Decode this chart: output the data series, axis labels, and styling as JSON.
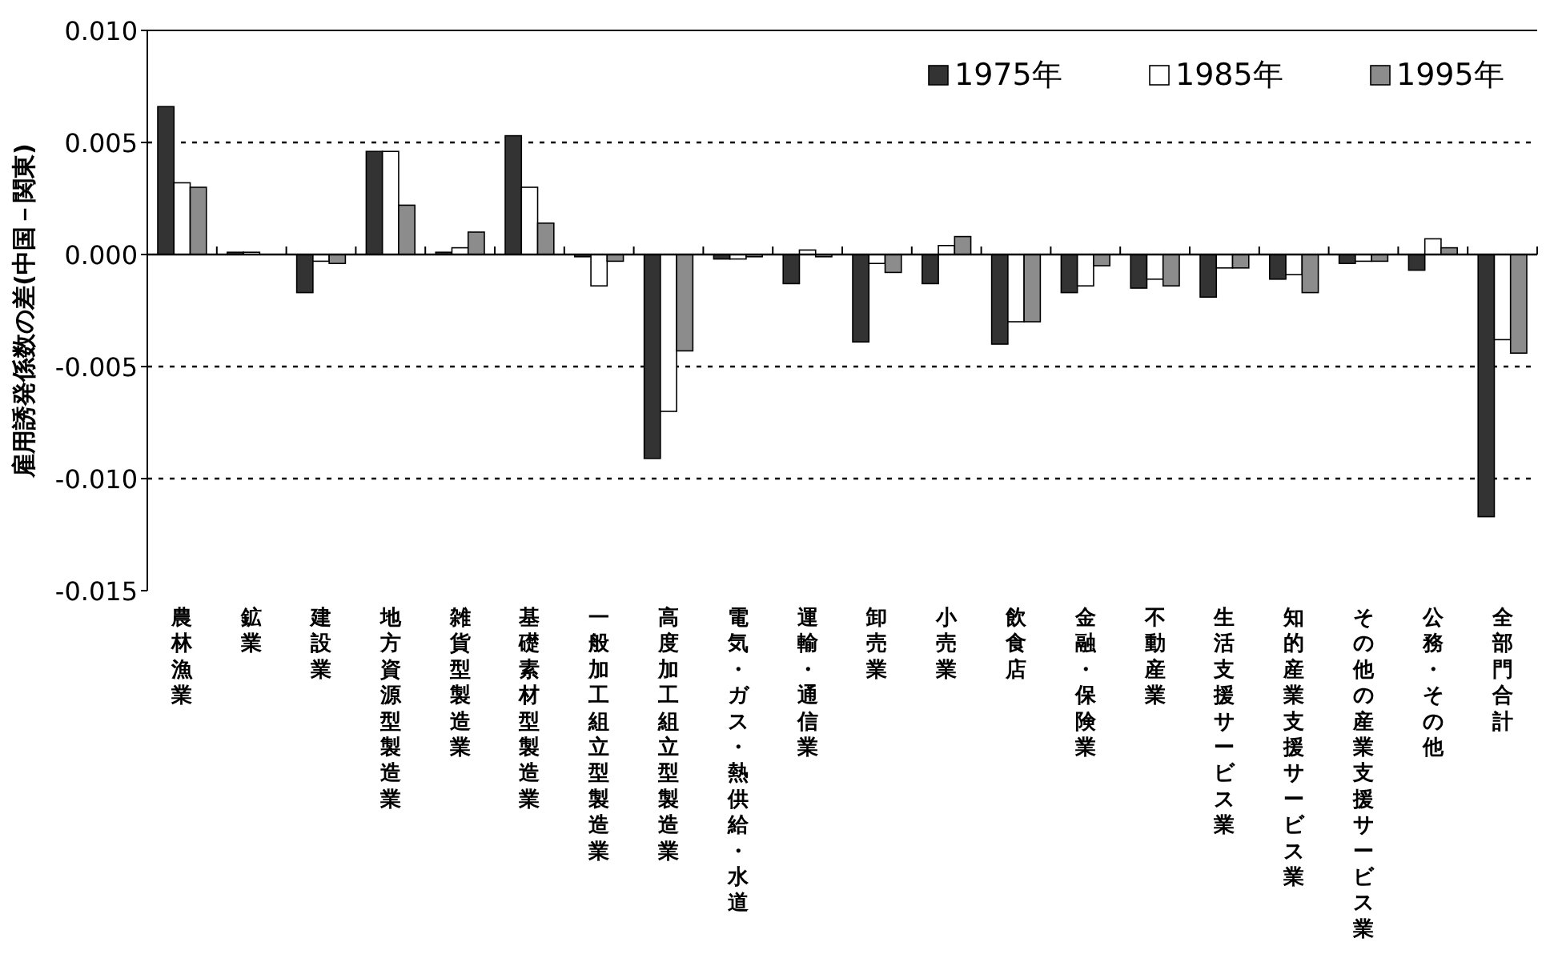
{
  "chart_data": {
    "type": "bar",
    "ylabel": "雇用誘発係数の差(中国－関東)",
    "categories": [
      "農林漁業",
      "鉱業",
      "建設業",
      "地方資源型製造業",
      "雑貨型製造業",
      "基礎素材型製造業",
      "一般加工組立型製造業",
      "高度加工組立型製造業",
      "電気・ガス・熱供給・水道",
      "運輸・通信業",
      "卸売業",
      "小売業",
      "飲食店",
      "金融・保険業",
      "不動産業",
      "生活支援サービス業",
      "知的産業支援サービス業",
      "その他の産業支援サービス業",
      "公務・その他",
      "全部門合計"
    ],
    "series": [
      {
        "name": "1975年",
        "color": "#333333",
        "values": [
          0.0066,
          0.0001,
          -0.0017,
          0.0046,
          0.0001,
          0.0053,
          -0.0001,
          -0.0091,
          -0.0002,
          -0.0013,
          -0.0039,
          -0.0013,
          -0.004,
          -0.0017,
          -0.0015,
          -0.0019,
          -0.0011,
          -0.0004,
          -0.0007,
          -0.0117
        ]
      },
      {
        "name": "1985年",
        "color": "#ffffff",
        "values": [
          0.0032,
          0.0001,
          -0.0003,
          0.0046,
          0.0003,
          0.003,
          -0.0014,
          -0.007,
          -0.0002,
          0.0002,
          -0.0004,
          0.0004,
          -0.003,
          -0.0014,
          -0.0011,
          -0.0006,
          -0.0009,
          -0.0003,
          0.0007,
          -0.0038
        ]
      },
      {
        "name": "1995年",
        "color": "#8c8c8c",
        "values": [
          0.003,
          0.0,
          -0.0004,
          0.0022,
          0.001,
          0.0014,
          -0.0003,
          -0.0043,
          -0.0001,
          -0.0001,
          -0.0008,
          0.0008,
          -0.003,
          -0.0005,
          -0.0014,
          -0.0006,
          -0.0017,
          -0.0003,
          0.0003,
          -0.0044
        ]
      }
    ],
    "ylim": [
      -0.015,
      0.01
    ],
    "yticks": [
      {
        "value": 0.01,
        "label": "0.010"
      },
      {
        "value": 0.005,
        "label": "0.005"
      },
      {
        "value": 0,
        "label": "0.000"
      },
      {
        "value": -0.005,
        "label": "-0.005"
      },
      {
        "value": -0.01,
        "label": "-0.010"
      },
      {
        "value": -0.015,
        "label": "-0.015"
      }
    ],
    "grid": "y",
    "legend": "top right"
  }
}
